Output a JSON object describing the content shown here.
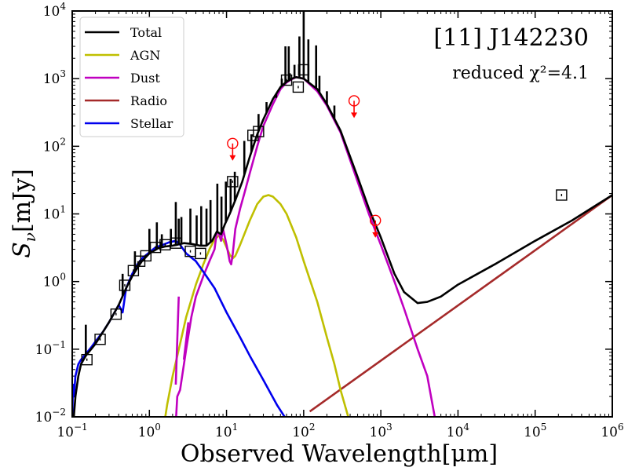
{
  "chart_data": {
    "type": "line",
    "title": "[11] J142230",
    "annotation": "reduced χ²=4.1",
    "xlabel": "Observed Wavelength[μm]",
    "ylabel": "S_ν[mJy]",
    "xscale": "log",
    "yscale": "log",
    "xlim": [
      0.1,
      1000000
    ],
    "ylim": [
      0.01,
      10000
    ],
    "x_ticks": [
      {
        "value": 0.1,
        "base": "10",
        "exp": "−1"
      },
      {
        "value": 1,
        "base": "10",
        "exp": "0"
      },
      {
        "value": 10,
        "base": "10",
        "exp": "1"
      },
      {
        "value": 100,
        "base": "10",
        "exp": "2"
      },
      {
        "value": 1000,
        "base": "10",
        "exp": "3"
      },
      {
        "value": 10000,
        "base": "10",
        "exp": "4"
      },
      {
        "value": 100000,
        "base": "10",
        "exp": "5"
      },
      {
        "value": 1000000,
        "base": "10",
        "exp": "6"
      }
    ],
    "y_ticks": [
      {
        "value": 0.01,
        "base": "10",
        "exp": "−2"
      },
      {
        "value": 0.1,
        "base": "10",
        "exp": "−1"
      },
      {
        "value": 1,
        "base": "10",
        "exp": "0"
      },
      {
        "value": 10,
        "base": "10",
        "exp": "1"
      },
      {
        "value": 100,
        "base": "10",
        "exp": "2"
      },
      {
        "value": 1000,
        "base": "10",
        "exp": "3"
      },
      {
        "value": 10000,
        "base": "10",
        "exp": "4"
      }
    ],
    "legend_position": "top-left",
    "series": [
      {
        "name": "Total",
        "color": "#000000",
        "points": [
          [
            0.1,
            0.005
          ],
          [
            0.11,
            0.02
          ],
          [
            0.12,
            0.04
          ],
          [
            0.13,
            0.06
          ],
          [
            0.15,
            0.08
          ],
          [
            0.2,
            0.12
          ],
          [
            0.3,
            0.25
          ],
          [
            0.4,
            0.45
          ],
          [
            0.5,
            0.8
          ],
          [
            0.6,
            1.2
          ],
          [
            0.7,
            1.6
          ],
          [
            0.8,
            2.0
          ],
          [
            1.0,
            2.6
          ],
          [
            1.3,
            3.1
          ],
          [
            1.6,
            3.3
          ],
          [
            2.0,
            3.4
          ],
          [
            2.3,
            3.5
          ],
          [
            2.8,
            3.7
          ],
          [
            3.5,
            3.6
          ],
          [
            4.5,
            3.4
          ],
          [
            5.5,
            3.4
          ],
          [
            6.5,
            4.0
          ],
          [
            7.5,
            5.5
          ],
          [
            8.5,
            5.0
          ],
          [
            9.5,
            7.0
          ],
          [
            11,
            10
          ],
          [
            13,
            16
          ],
          [
            16,
            30
          ],
          [
            20,
            70
          ],
          [
            25,
            150
          ],
          [
            30,
            250
          ],
          [
            40,
            500
          ],
          [
            50,
            750
          ],
          [
            60,
            900
          ],
          [
            70,
            1000
          ],
          [
            80,
            1050
          ],
          [
            100,
            1000
          ],
          [
            150,
            700
          ],
          [
            200,
            420
          ],
          [
            300,
            170
          ],
          [
            500,
            35
          ],
          [
            700,
            12
          ],
          [
            1000,
            4.5
          ],
          [
            1500,
            1.3
          ],
          [
            2000,
            0.7
          ],
          [
            3000,
            0.48
          ],
          [
            4000,
            0.5
          ],
          [
            6000,
            0.6
          ],
          [
            10000,
            0.9
          ],
          [
            30000,
            1.8
          ],
          [
            100000,
            4.0
          ],
          [
            300000,
            8.0
          ],
          [
            1000000,
            19
          ]
        ],
        "spikes": [
          [
            0.15,
            0.23
          ],
          [
            0.45,
            1.3
          ],
          [
            0.65,
            2.8
          ],
          [
            0.72,
            2.0
          ],
          [
            1.0,
            6
          ],
          [
            1.25,
            7.5
          ],
          [
            1.45,
            5
          ],
          [
            1.9,
            6
          ],
          [
            2.2,
            15
          ],
          [
            2.4,
            8.5
          ],
          [
            2.6,
            9
          ],
          [
            3.4,
            12
          ],
          [
            4.1,
            9.5
          ],
          [
            4.7,
            13
          ],
          [
            5.5,
            12
          ],
          [
            6.2,
            16
          ],
          [
            7.6,
            28
          ],
          [
            8.6,
            18
          ],
          [
            9.8,
            30
          ],
          [
            11.3,
            33
          ],
          [
            12.8,
            42
          ],
          [
            17,
            120
          ],
          [
            21,
            150
          ],
          [
            26,
            300
          ],
          [
            33,
            450
          ],
          [
            44,
            520
          ],
          [
            52,
            1000
          ],
          [
            58,
            3000
          ],
          [
            64,
            3000
          ],
          [
            66,
            1200
          ],
          [
            76,
            1600
          ],
          [
            88,
            4200
          ],
          [
            100,
            10000
          ],
          [
            115,
            3800
          ],
          [
            145,
            3100
          ],
          [
            160,
            1100
          ],
          [
            200,
            650
          ],
          [
            250,
            400
          ]
        ]
      },
      {
        "name": "AGN",
        "color": "#bfbf00",
        "points": [
          [
            1.5,
            0.006
          ],
          [
            1.7,
            0.015
          ],
          [
            2.0,
            0.04
          ],
          [
            2.5,
            0.12
          ],
          [
            3.0,
            0.3
          ],
          [
            4.0,
            0.9
          ],
          [
            5.0,
            1.8
          ],
          [
            6.0,
            3.0
          ],
          [
            7.0,
            4.2
          ],
          [
            8.0,
            4.8
          ],
          [
            9.0,
            4.2
          ],
          [
            10.0,
            3.2
          ],
          [
            11.0,
            2.5
          ],
          [
            12.0,
            2.2
          ],
          [
            13.0,
            2.4
          ],
          [
            15.0,
            3.5
          ],
          [
            20.0,
            8.0
          ],
          [
            25.0,
            14
          ],
          [
            30.0,
            18
          ],
          [
            35.0,
            19
          ],
          [
            40.0,
            18
          ],
          [
            50.0,
            14
          ],
          [
            60.0,
            10
          ],
          [
            80.0,
            4.5
          ],
          [
            100.0,
            2.0
          ],
          [
            150.0,
            0.5
          ],
          [
            200.0,
            0.15
          ],
          [
            250.0,
            0.06
          ],
          [
            300.0,
            0.025
          ],
          [
            400.0,
            0.008
          ]
        ]
      },
      {
        "name": "Dust",
        "color": "#c000c0",
        "points": [
          [
            2.2,
            0.008
          ],
          [
            2.3,
            0.02
          ],
          [
            2.5,
            0.025
          ],
          [
            3.0,
            0.1
          ],
          [
            3.5,
            0.3
          ],
          [
            4.0,
            0.6
          ],
          [
            5.0,
            1.2
          ],
          [
            6.0,
            2.0
          ],
          [
            7.0,
            3.0
          ],
          [
            7.5,
            5.5
          ],
          [
            8.0,
            5.0
          ],
          [
            8.5,
            4.0
          ],
          [
            9.0,
            6.0
          ],
          [
            10.0,
            3.5
          ],
          [
            11.0,
            2.0
          ],
          [
            11.5,
            1.8
          ],
          [
            12.0,
            2.5
          ],
          [
            13.0,
            6.0
          ],
          [
            15.0,
            12
          ],
          [
            17.0,
            20
          ],
          [
            20.0,
            40
          ],
          [
            25.0,
            100
          ],
          [
            30.0,
            200
          ],
          [
            40.0,
            420
          ],
          [
            50.0,
            700
          ],
          [
            60.0,
            880
          ],
          [
            70.0,
            980
          ],
          [
            80.0,
            1050
          ],
          [
            100.0,
            1000
          ],
          [
            150.0,
            650
          ],
          [
            200.0,
            400
          ],
          [
            300.0,
            160
          ],
          [
            500.0,
            30
          ],
          [
            700.0,
            10
          ],
          [
            1000.0,
            3.5
          ],
          [
            1500.0,
            1.0
          ],
          [
            2000.0,
            0.4
          ],
          [
            3000.0,
            0.1
          ],
          [
            4000.0,
            0.04
          ],
          [
            5000.0,
            0.01
          ]
        ],
        "extra": [
          [
            [
              2.2,
              0.03
            ],
            [
              2.4,
              0.6
            ]
          ],
          [
            [
              2.8,
              0.07
            ],
            [
              3.2,
              0.25
            ]
          ]
        ]
      },
      {
        "name": "Radio",
        "color": "#a52a2a",
        "points": [
          [
            120,
            0.012
          ],
          [
            1000000,
            19
          ]
        ]
      },
      {
        "name": "Stellar",
        "color": "#0000ee",
        "points": [
          [
            0.09,
            0.004
          ],
          [
            0.095,
            0.01
          ],
          [
            0.1,
            0.006
          ],
          [
            0.102,
            0.03
          ],
          [
            0.105,
            0.02
          ],
          [
            0.11,
            0.04
          ],
          [
            0.12,
            0.06
          ],
          [
            0.13,
            0.07
          ],
          [
            0.15,
            0.085
          ],
          [
            0.18,
            0.11
          ],
          [
            0.2,
            0.13
          ],
          [
            0.25,
            0.18
          ],
          [
            0.3,
            0.25
          ],
          [
            0.4,
            0.45
          ],
          [
            0.45,
            0.35
          ],
          [
            0.5,
            0.8
          ],
          [
            0.6,
            1.3
          ],
          [
            0.7,
            1.8
          ],
          [
            0.8,
            2.2
          ],
          [
            1.0,
            2.7
          ],
          [
            1.2,
            3.2
          ],
          [
            1.5,
            3.5
          ],
          [
            1.8,
            3.8
          ],
          [
            2.0,
            3.9
          ],
          [
            2.2,
            4.0
          ],
          [
            2.5,
            3.5
          ],
          [
            3.0,
            2.6
          ],
          [
            4.0,
            2.0
          ],
          [
            5.0,
            1.4
          ],
          [
            7.0,
            0.8
          ],
          [
            10.0,
            0.35
          ],
          [
            15.0,
            0.15
          ],
          [
            20.0,
            0.08
          ],
          [
            30.0,
            0.035
          ],
          [
            45.0,
            0.015
          ],
          [
            60.0,
            0.009
          ]
        ]
      }
    ],
    "photometry": [
      {
        "x": 0.155,
        "y": 0.07
      },
      {
        "x": 0.23,
        "y": 0.14
      },
      {
        "x": 0.37,
        "y": 0.33
      },
      {
        "x": 0.48,
        "y": 0.88
      },
      {
        "x": 0.62,
        "y": 1.45
      },
      {
        "x": 0.75,
        "y": 2.0
      },
      {
        "x": 0.9,
        "y": 2.4
      },
      {
        "x": 1.2,
        "y": 3.2
      },
      {
        "x": 1.6,
        "y": 3.5
      },
      {
        "x": 2.2,
        "y": 3.7
      },
      {
        "x": 3.4,
        "y": 2.8
      },
      {
        "x": 4.6,
        "y": 2.6
      },
      {
        "x": 12,
        "y": 30
      },
      {
        "x": 22,
        "y": 145
      },
      {
        "x": 26,
        "y": 165
      },
      {
        "x": 60,
        "y": 950
      },
      {
        "x": 85,
        "y": 750
      },
      {
        "x": 100,
        "y": 1350
      },
      {
        "x": 220000,
        "y": 19
      }
    ],
    "upper_limits": [
      {
        "x": 12,
        "y": 110
      },
      {
        "x": 450,
        "y": 470
      },
      {
        "x": 850,
        "y": 8
      }
    ]
  }
}
